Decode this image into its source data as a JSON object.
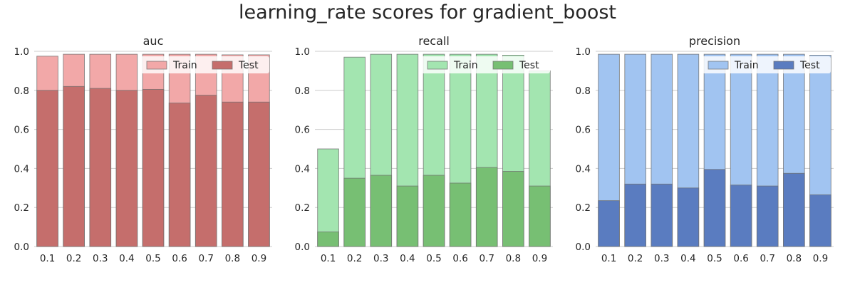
{
  "figure": {
    "title": "learning_rate scores for gradient_boost"
  },
  "chart_data": [
    {
      "type": "bar",
      "title": "auc",
      "categories": [
        "0.1",
        "0.2",
        "0.3",
        "0.4",
        "0.5",
        "0.6",
        "0.7",
        "0.8",
        "0.9"
      ],
      "ylim": [
        0,
        1.0
      ],
      "yticks": [
        "0.0",
        "0.2",
        "0.4",
        "0.6",
        "0.8",
        "1.0"
      ],
      "grid": true,
      "legend_position": "top-right",
      "series": [
        {
          "name": "Train",
          "color": "#f2a8a8",
          "values": [
            0.975,
            0.985,
            0.985,
            0.985,
            0.985,
            0.985,
            0.985,
            0.982,
            0.982
          ]
        },
        {
          "name": "Test",
          "color": "#c56e6c",
          "values": [
            0.8,
            0.82,
            0.81,
            0.8,
            0.805,
            0.735,
            0.775,
            0.74,
            0.74
          ]
        }
      ]
    },
    {
      "type": "bar",
      "title": "recall",
      "categories": [
        "0.1",
        "0.2",
        "0.3",
        "0.4",
        "0.5",
        "0.6",
        "0.7",
        "0.8",
        "0.9"
      ],
      "ylim": [
        0,
        1.0
      ],
      "yticks": [
        "0.0",
        "0.2",
        "0.4",
        "0.6",
        "0.8",
        "1.0"
      ],
      "grid": true,
      "legend_position": "top-right",
      "series": [
        {
          "name": "Train",
          "color": "#a3e5b0",
          "values": [
            0.5,
            0.97,
            0.985,
            0.985,
            0.985,
            0.985,
            0.985,
            0.98,
            0.9
          ]
        },
        {
          "name": "Test",
          "color": "#77bf73",
          "values": [
            0.075,
            0.35,
            0.365,
            0.31,
            0.365,
            0.325,
            0.405,
            0.385,
            0.31
          ]
        }
      ]
    },
    {
      "type": "bar",
      "title": "precision",
      "categories": [
        "0.1",
        "0.2",
        "0.3",
        "0.4",
        "0.5",
        "0.6",
        "0.7",
        "0.8",
        "0.9"
      ],
      "ylim": [
        0,
        1.0
      ],
      "yticks": [
        "0.0",
        "0.2",
        "0.4",
        "0.6",
        "0.8",
        "1.0"
      ],
      "grid": true,
      "legend_position": "top-right",
      "series": [
        {
          "name": "Train",
          "color": "#a1c4f1",
          "values": [
            0.985,
            0.985,
            0.985,
            0.985,
            0.985,
            0.985,
            0.985,
            0.985,
            0.98
          ]
        },
        {
          "name": "Test",
          "color": "#5a7cc0",
          "values": [
            0.235,
            0.32,
            0.32,
            0.3,
            0.395,
            0.315,
            0.31,
            0.375,
            0.265
          ]
        }
      ]
    }
  ]
}
